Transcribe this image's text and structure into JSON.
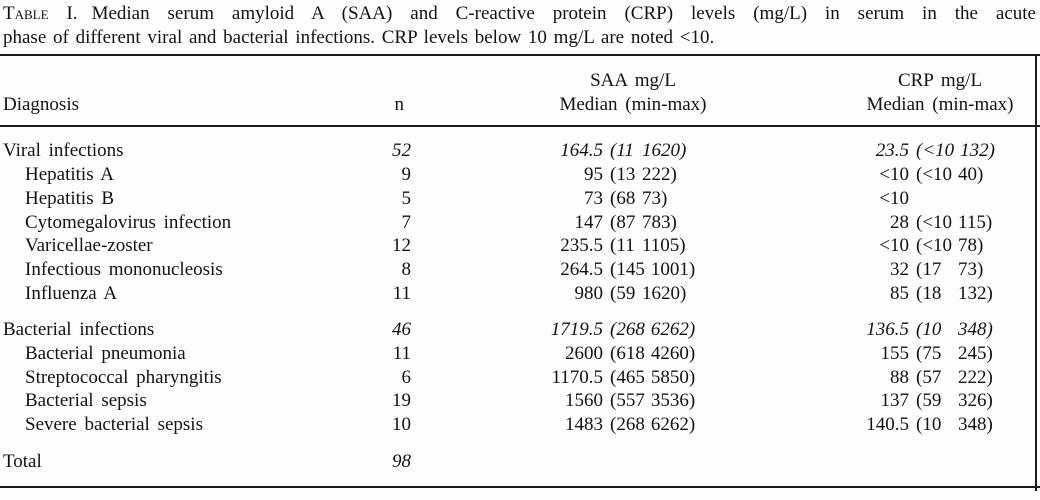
{
  "caption": {
    "label": "Table I.",
    "line1": "Median serum amyloid A (SAA) and C-reactive protein (CRP) levels (mg/L) in serum in the acute",
    "line2": "phase of different viral and bacterial infections. CRP levels below 10 mg/L are noted <10."
  },
  "header": {
    "diagnosis": "Diagnosis",
    "n": "n",
    "saa_unit": "SAA mg/L",
    "saa_stat": "Median (min-max)",
    "crp_unit": "CRP mg/L",
    "crp_stat": "Median (min-max)"
  },
  "rows": [
    {
      "label": "Viral infections",
      "indent": false,
      "italic": true,
      "gap": false,
      "n": "52",
      "saa": {
        "median": "164.5",
        "min": "11",
        "max": "1620"
      },
      "crp": {
        "median": "23.5",
        "min": "<10",
        "max": "132"
      }
    },
    {
      "label": "Hepatitis A",
      "indent": true,
      "italic": false,
      "gap": false,
      "n": "9",
      "saa": {
        "median": "95",
        "min": "13",
        "max": "222"
      },
      "crp": {
        "median": "<10",
        "min": "<10",
        "max": "40"
      }
    },
    {
      "label": "Hepatitis B",
      "indent": true,
      "italic": false,
      "gap": false,
      "n": "5",
      "saa": {
        "median": "73",
        "min": "68",
        "max": "73"
      },
      "crp": {
        "median": "<10"
      }
    },
    {
      "label": "Cytomegalovirus infection",
      "indent": true,
      "italic": false,
      "gap": false,
      "n": "7",
      "saa": {
        "median": "147",
        "min": "87",
        "max": "783"
      },
      "crp": {
        "median": "28",
        "min": "<10",
        "max": "115"
      }
    },
    {
      "label": "Varicellae-zoster",
      "indent": true,
      "italic": false,
      "gap": false,
      "n": "12",
      "saa": {
        "median": "235.5",
        "min": "11",
        "max": "1105"
      },
      "crp": {
        "median": "<10",
        "min": "<10",
        "max": "78"
      }
    },
    {
      "label": "Infectious mononucleosis",
      "indent": true,
      "italic": false,
      "gap": false,
      "n": "8",
      "saa": {
        "median": "264.5",
        "min": "145",
        "max": "1001"
      },
      "crp": {
        "median": "32",
        "min": "17",
        "max": "73"
      }
    },
    {
      "label": "Influenza A",
      "indent": true,
      "italic": false,
      "gap": false,
      "n": "11",
      "saa": {
        "median": "980",
        "min": "59",
        "max": "1620"
      },
      "crp": {
        "median": "85",
        "min": "18",
        "max": "132"
      }
    },
    {
      "label": "Bacterial infections",
      "indent": false,
      "italic": true,
      "gap": true,
      "n": "46",
      "saa": {
        "median": "1719.5",
        "min": "268",
        "max": "6262"
      },
      "crp": {
        "median": "136.5",
        "min": "10",
        "max": "348"
      }
    },
    {
      "label": "Bacterial pneumonia",
      "indent": true,
      "italic": false,
      "gap": false,
      "n": "11",
      "saa": {
        "median": "2600",
        "min": "618",
        "max": "4260"
      },
      "crp": {
        "median": "155",
        "min": "75",
        "max": "245"
      }
    },
    {
      "label": "Streptococcal pharyngitis",
      "indent": true,
      "italic": false,
      "gap": false,
      "n": "6",
      "saa": {
        "median": "1170.5",
        "min": "465",
        "max": "5850"
      },
      "crp": {
        "median": "88",
        "min": "57",
        "max": "222"
      }
    },
    {
      "label": "Bacterial sepsis",
      "indent": true,
      "italic": false,
      "gap": false,
      "n": "19",
      "saa": {
        "median": "1560",
        "min": "557",
        "max": "3536"
      },
      "crp": {
        "median": "137",
        "min": "59",
        "max": "326"
      }
    },
    {
      "label": "Severe bacterial sepsis",
      "indent": true,
      "italic": false,
      "gap": false,
      "n": "10",
      "saa": {
        "median": "1483",
        "min": "268",
        "max": "6262"
      },
      "crp": {
        "median": "140.5",
        "min": "10",
        "max": "348"
      }
    },
    {
      "label": "Total",
      "indent": false,
      "italic": true,
      "gap": true,
      "n": "98"
    }
  ]
}
